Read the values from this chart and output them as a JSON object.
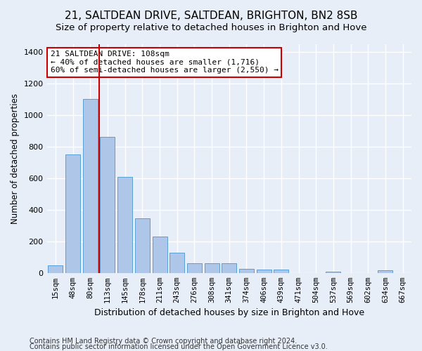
{
  "title1": "21, SALTDEAN DRIVE, SALTDEAN, BRIGHTON, BN2 8SB",
  "title2": "Size of property relative to detached houses in Brighton and Hove",
  "xlabel": "Distribution of detached houses by size in Brighton and Hove",
  "ylabel": "Number of detached properties",
  "footer1": "Contains HM Land Registry data © Crown copyright and database right 2024.",
  "footer2": "Contains public sector information licensed under the Open Government Licence v3.0.",
  "categories": [
    "15sqm",
    "48sqm",
    "80sqm",
    "113sqm",
    "145sqm",
    "178sqm",
    "211sqm",
    "243sqm",
    "276sqm",
    "308sqm",
    "341sqm",
    "374sqm",
    "406sqm",
    "439sqm",
    "471sqm",
    "504sqm",
    "537sqm",
    "569sqm",
    "602sqm",
    "634sqm",
    "667sqm"
  ],
  "values": [
    48,
    750,
    1100,
    860,
    610,
    345,
    228,
    128,
    60,
    62,
    62,
    28,
    20,
    20,
    0,
    0,
    10,
    0,
    0,
    15,
    0
  ],
  "bar_color": "#aec6e8",
  "bar_edge_color": "#5a9fd4",
  "background_color": "#e8eef8",
  "grid_color": "#ffffff",
  "vline_x_index": 2,
  "vline_color": "#cc0000",
  "annotation_text": "21 SALTDEAN DRIVE: 108sqm\n← 40% of detached houses are smaller (1,716)\n60% of semi-detached houses are larger (2,550) →",
  "annotation_box_color": "#ffffff",
  "annotation_box_edge": "#cc0000",
  "ylim": [
    0,
    1450
  ],
  "yticks": [
    0,
    200,
    400,
    600,
    800,
    1000,
    1200,
    1400
  ],
  "title1_fontsize": 11,
  "title2_fontsize": 9.5,
  "xlabel_fontsize": 9,
  "ylabel_fontsize": 8.5,
  "footer_fontsize": 7
}
